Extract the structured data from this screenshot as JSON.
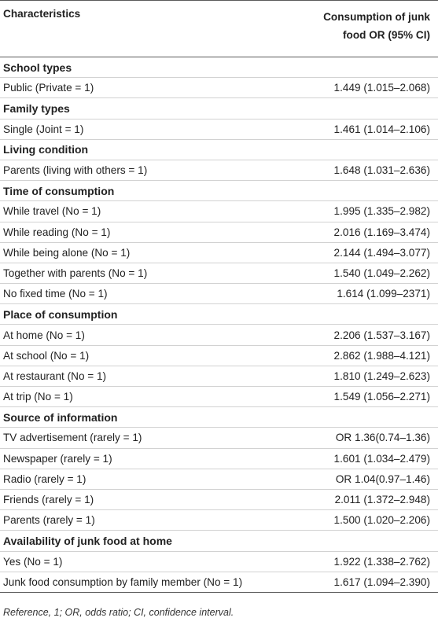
{
  "header": {
    "col1": "Characteristics",
    "col2_line1": "Consumption of junk",
    "col2_line2": "food OR (95% CI)"
  },
  "rows": [
    {
      "type": "section",
      "label": "School types"
    },
    {
      "type": "data",
      "label": "Public (Private = 1)",
      "value": "1.449 (1.015–2.068)"
    },
    {
      "type": "section",
      "label": "Family types"
    },
    {
      "type": "data",
      "label": "Single (Joint = 1)",
      "value": "1.461 (1.014–2.106)"
    },
    {
      "type": "section",
      "label": "Living condition"
    },
    {
      "type": "data",
      "label": "Parents (living with others = 1)",
      "value": "1.648 (1.031–2.636)"
    },
    {
      "type": "section",
      "label": "Time of consumption"
    },
    {
      "type": "data",
      "label": "While travel (No = 1)",
      "value": "1.995 (1.335–2.982)"
    },
    {
      "type": "data",
      "label": "While reading (No = 1)",
      "value": "2.016 (1.169–3.474)"
    },
    {
      "type": "data",
      "label": "While being alone (No = 1)",
      "value": "2.144 (1.494–3.077)"
    },
    {
      "type": "data",
      "label": "Together with parents (No = 1)",
      "value": "1.540 (1.049–2.262)"
    },
    {
      "type": "data",
      "label": "No fixed time (No = 1)",
      "value": "1.614 (1.099–2371)"
    },
    {
      "type": "section",
      "label": "Place of consumption"
    },
    {
      "type": "data",
      "label": "At home (No = 1)",
      "value": "2.206 (1.537–3.167)"
    },
    {
      "type": "data",
      "label": "At school (No = 1)",
      "value": "2.862 (1.988–4.121)"
    },
    {
      "type": "data",
      "label": "At restaurant (No = 1)",
      "value": "1.810 (1.249–2.623)"
    },
    {
      "type": "data",
      "label": "At trip (No = 1)",
      "value": "1.549 (1.056–2.271)"
    },
    {
      "type": "section",
      "label": "Source of information"
    },
    {
      "type": "data",
      "label": "TV advertisement (rarely = 1)",
      "value": "OR 1.36(0.74–1.36)"
    },
    {
      "type": "data",
      "label": "Newspaper (rarely = 1)",
      "value": "1.601 (1.034–2.479)"
    },
    {
      "type": "data",
      "label": "Radio (rarely = 1)",
      "value": "OR 1.04(0.97–1.46)"
    },
    {
      "type": "data",
      "label": "Friends (rarely = 1)",
      "value": "2.011 (1.372–2.948)"
    },
    {
      "type": "data",
      "label": "Parents (rarely = 1)",
      "value": "1.500 (1.020–2.206)"
    },
    {
      "type": "section",
      "label": "Availability of junk food at home"
    },
    {
      "type": "data",
      "label": "Yes (No = 1)",
      "value": "1.922 (1.338–2.762)"
    },
    {
      "type": "data",
      "label": "Junk food consumption by family member (No = 1)",
      "value": "1.617 (1.094–2.390)"
    }
  ],
  "footnote": "Reference, 1; OR, odds ratio; CI, confidence interval."
}
